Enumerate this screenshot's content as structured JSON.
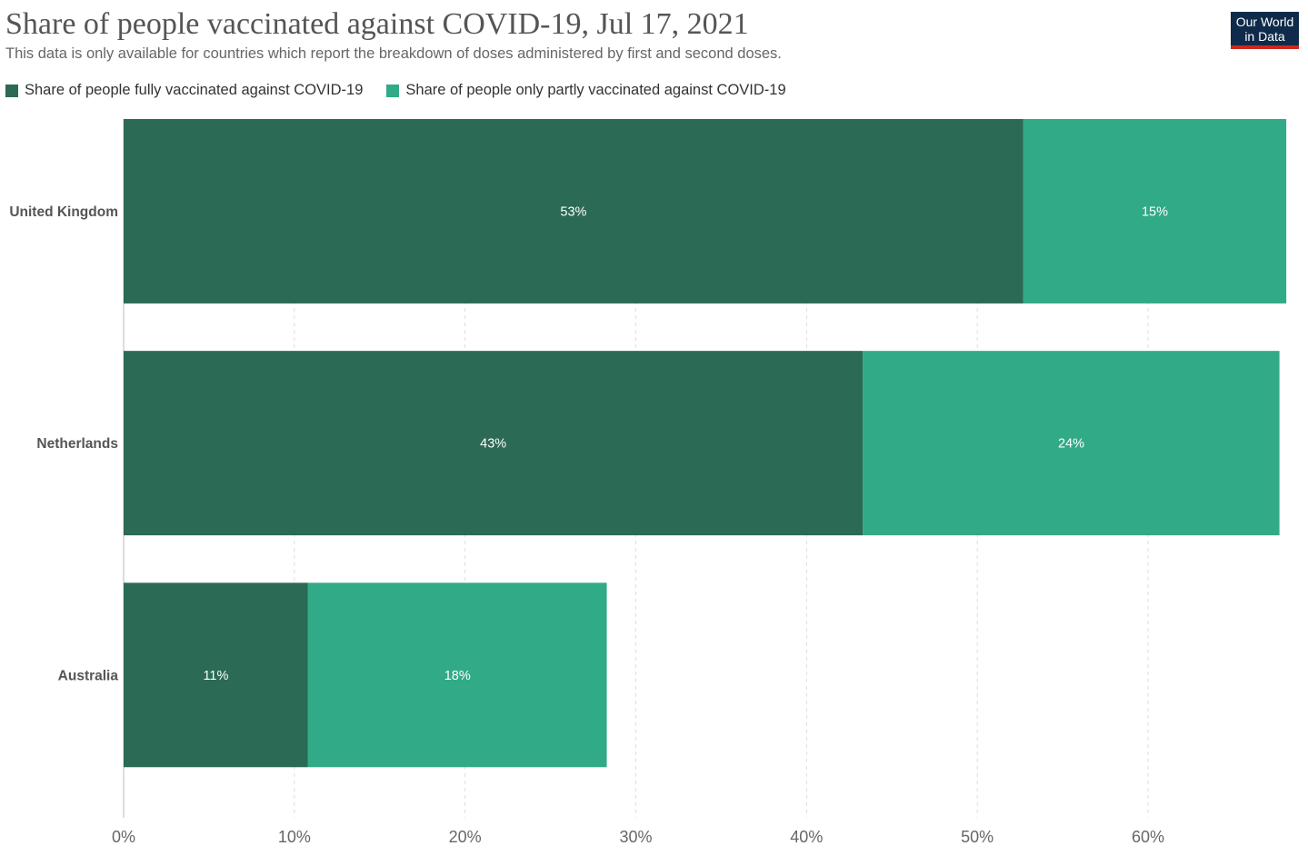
{
  "header": {
    "title": "Share of people vaccinated against COVID-19, Jul 17, 2021",
    "subtitle": "This data is only available for countries which report the breakdown of doses administered by first and second doses."
  },
  "logo": {
    "line1": "Our World",
    "line2": "in Data"
  },
  "colors": {
    "fully": "#2b6a54",
    "partly": "#31aa87",
    "grid": "#dddddd",
    "axis": "#bbbbbb",
    "logo_bg": "#0f2a4a",
    "logo_underline": "#ce261e"
  },
  "chart_data": {
    "type": "bar",
    "orientation": "horizontal",
    "stacked": true,
    "title": "Share of people vaccinated against COVID-19, Jul 17, 2021",
    "subtitle": "This data is only available for countries which report the breakdown of doses administered by first and second doses.",
    "categories": [
      "United Kingdom",
      "Netherlands",
      "Australia"
    ],
    "series": [
      {
        "name": "Share of people fully vaccinated against COVID-19",
        "values": [
          52.7,
          43.3,
          10.8
        ],
        "labels": [
          "53%",
          "43%",
          "11%"
        ]
      },
      {
        "name": "Share of people only partly vaccinated against COVID-19",
        "values": [
          15.4,
          24.4,
          17.5
        ],
        "labels": [
          "15%",
          "24%",
          "18%"
        ]
      }
    ],
    "xlim": [
      0,
      68.2
    ],
    "xticks": [
      0,
      10,
      20,
      30,
      40,
      50,
      60
    ],
    "xtick_labels": [
      "0%",
      "10%",
      "20%",
      "30%",
      "40%",
      "50%",
      "60%"
    ],
    "grid": "vertical dashed",
    "legend_position": "top-left",
    "xlabel": "",
    "ylabel": ""
  }
}
